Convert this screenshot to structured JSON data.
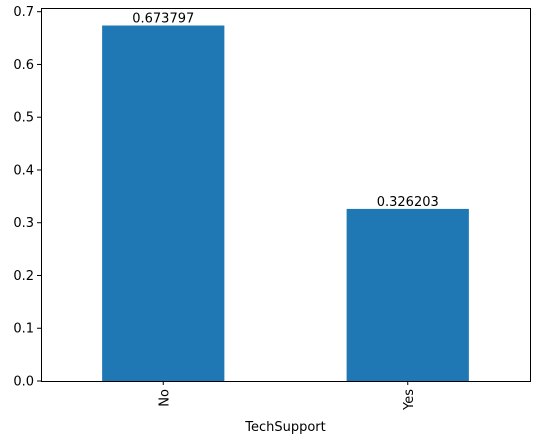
{
  "chart_data": {
    "type": "bar",
    "categories": [
      "No",
      "Yes"
    ],
    "values": [
      0.673797,
      0.326203
    ],
    "data_labels": [
      "0.673797",
      "0.326203"
    ],
    "xlabel": "TechSupport",
    "ylabel": "",
    "ylim": [
      0,
      0.707
    ],
    "yticks": [
      0.0,
      0.1,
      0.2,
      0.3,
      0.4,
      0.5,
      0.6,
      0.7
    ],
    "ytick_labels": [
      "0.0",
      "0.1",
      "0.2",
      "0.3",
      "0.4",
      "0.5",
      "0.6",
      "0.7"
    ],
    "bar_color": "#1f77b4",
    "grid": false,
    "xtick_rotation": "vertical"
  }
}
